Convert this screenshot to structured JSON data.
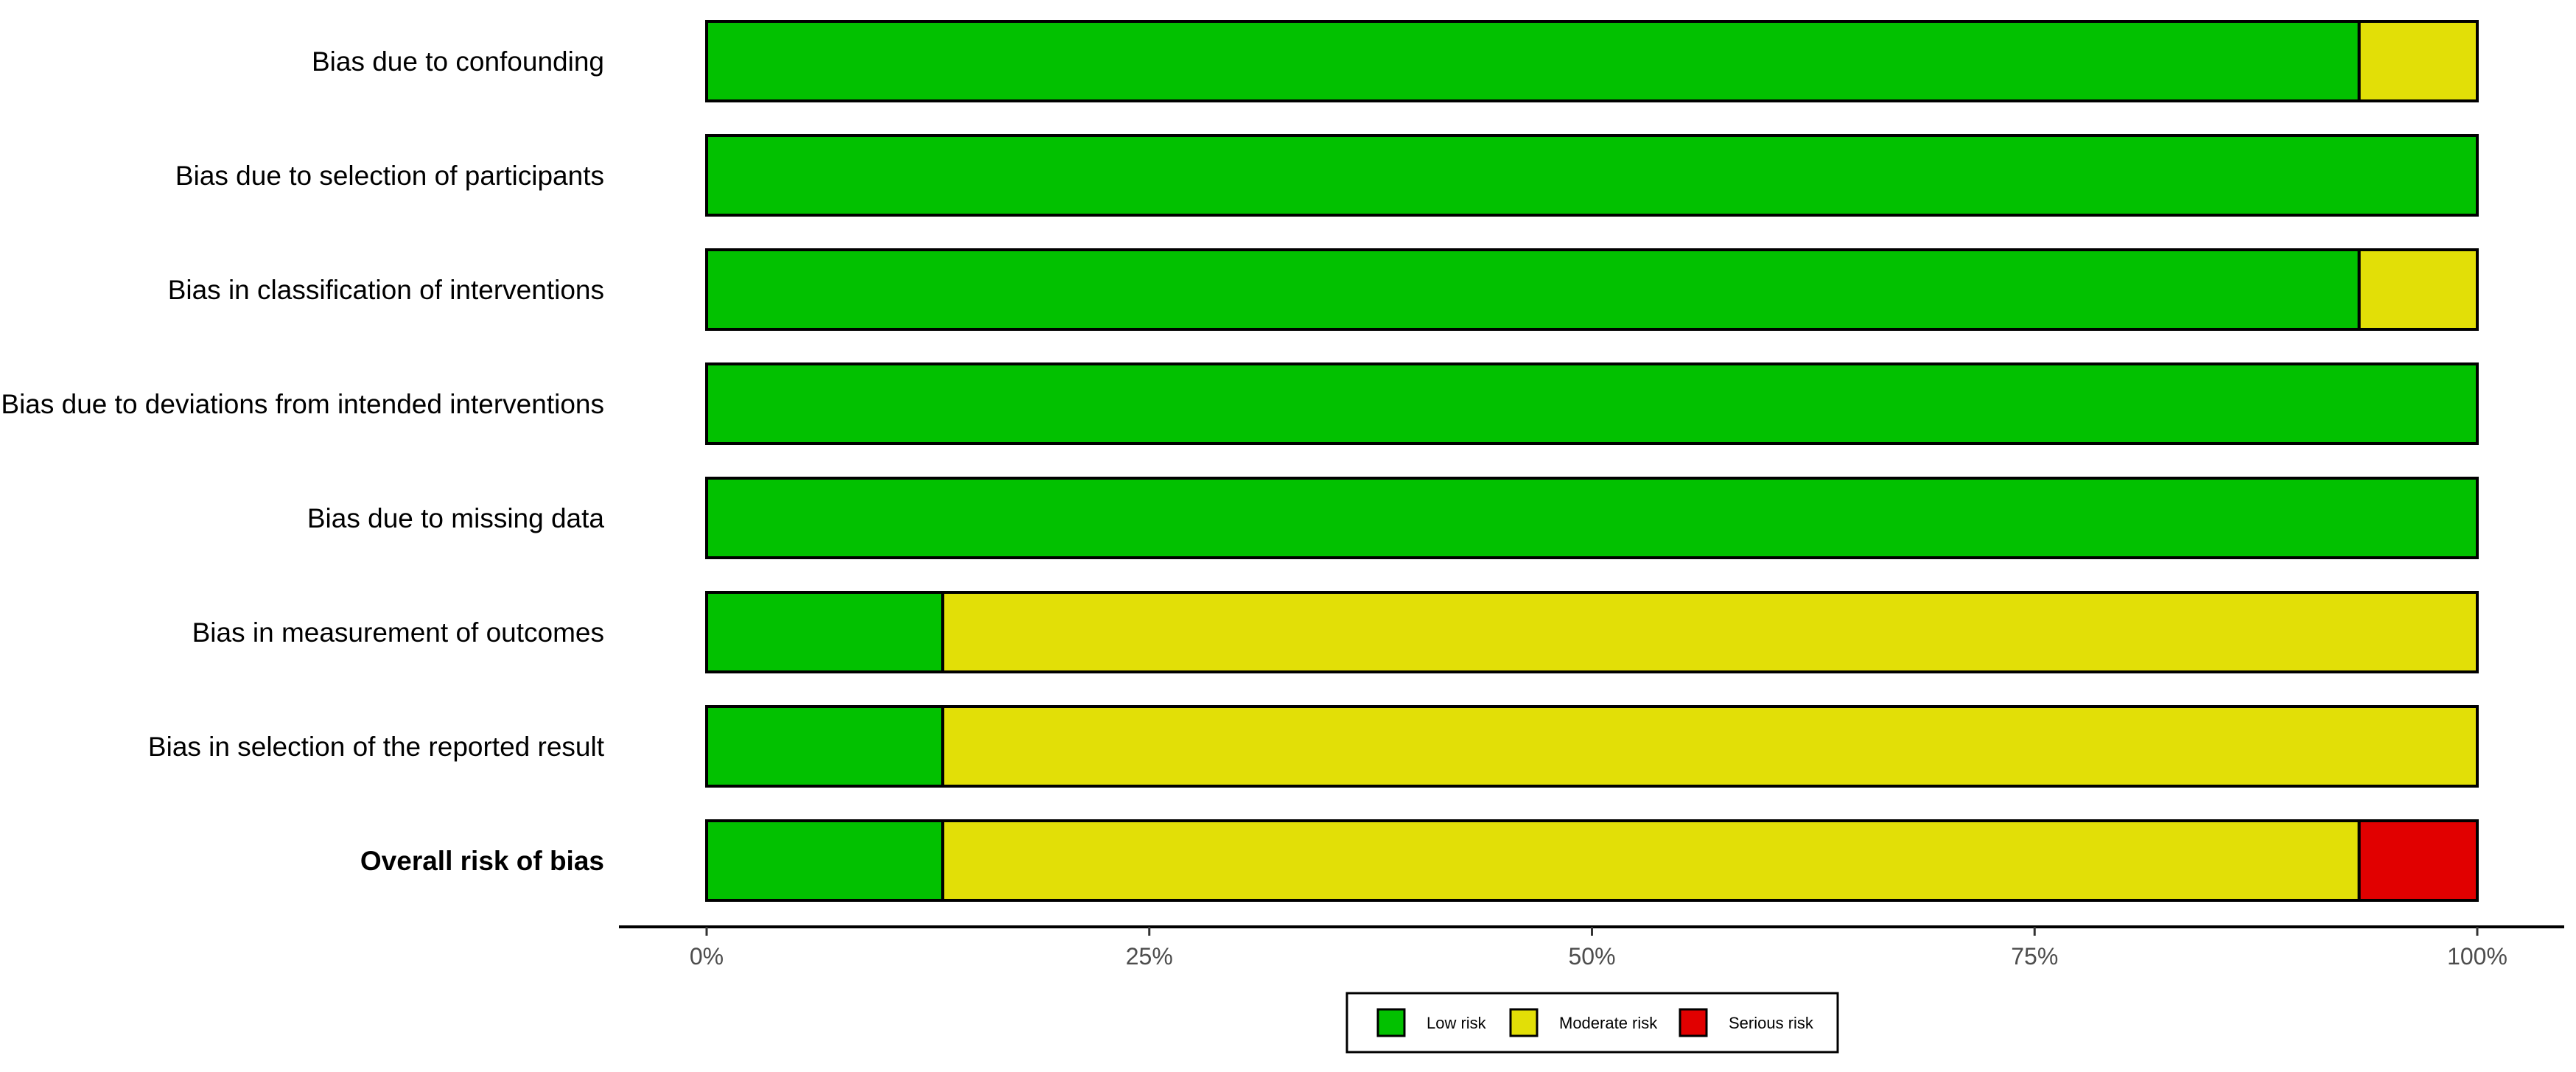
{
  "chart_data": {
    "type": "bar",
    "orientation": "horizontal",
    "stacked": true,
    "categories": [
      "Bias due to confounding",
      "Bias due to selection of participants",
      "Bias in classification of interventions",
      "Bias due to deviations from intended interventions",
      "Bias due to missing data",
      "Bias in measurement of outcomes",
      "Bias in selection of the reported result",
      "Overall risk of bias"
    ],
    "emphasized_category": "Overall risk of bias",
    "series": [
      {
        "name": "Low risk",
        "color": "#02c100",
        "values": [
          93.33,
          100,
          93.33,
          100,
          100,
          13.33,
          13.33,
          13.33
        ]
      },
      {
        "name": "Moderate risk",
        "color": "#e2df07",
        "values": [
          6.67,
          0,
          6.67,
          0,
          0,
          86.67,
          86.67,
          80
        ]
      },
      {
        "name": "Serious risk",
        "color": "#e10000",
        "values": [
          0,
          0,
          0,
          0,
          0,
          0,
          0,
          6.67
        ]
      }
    ],
    "xlim": [
      0,
      100
    ],
    "xticks": [
      0,
      25,
      50,
      75,
      100
    ],
    "xtick_labels": [
      "0%",
      "25%",
      "50%",
      "75%",
      "100%"
    ],
    "legend_position": "bottom",
    "grid": false
  }
}
